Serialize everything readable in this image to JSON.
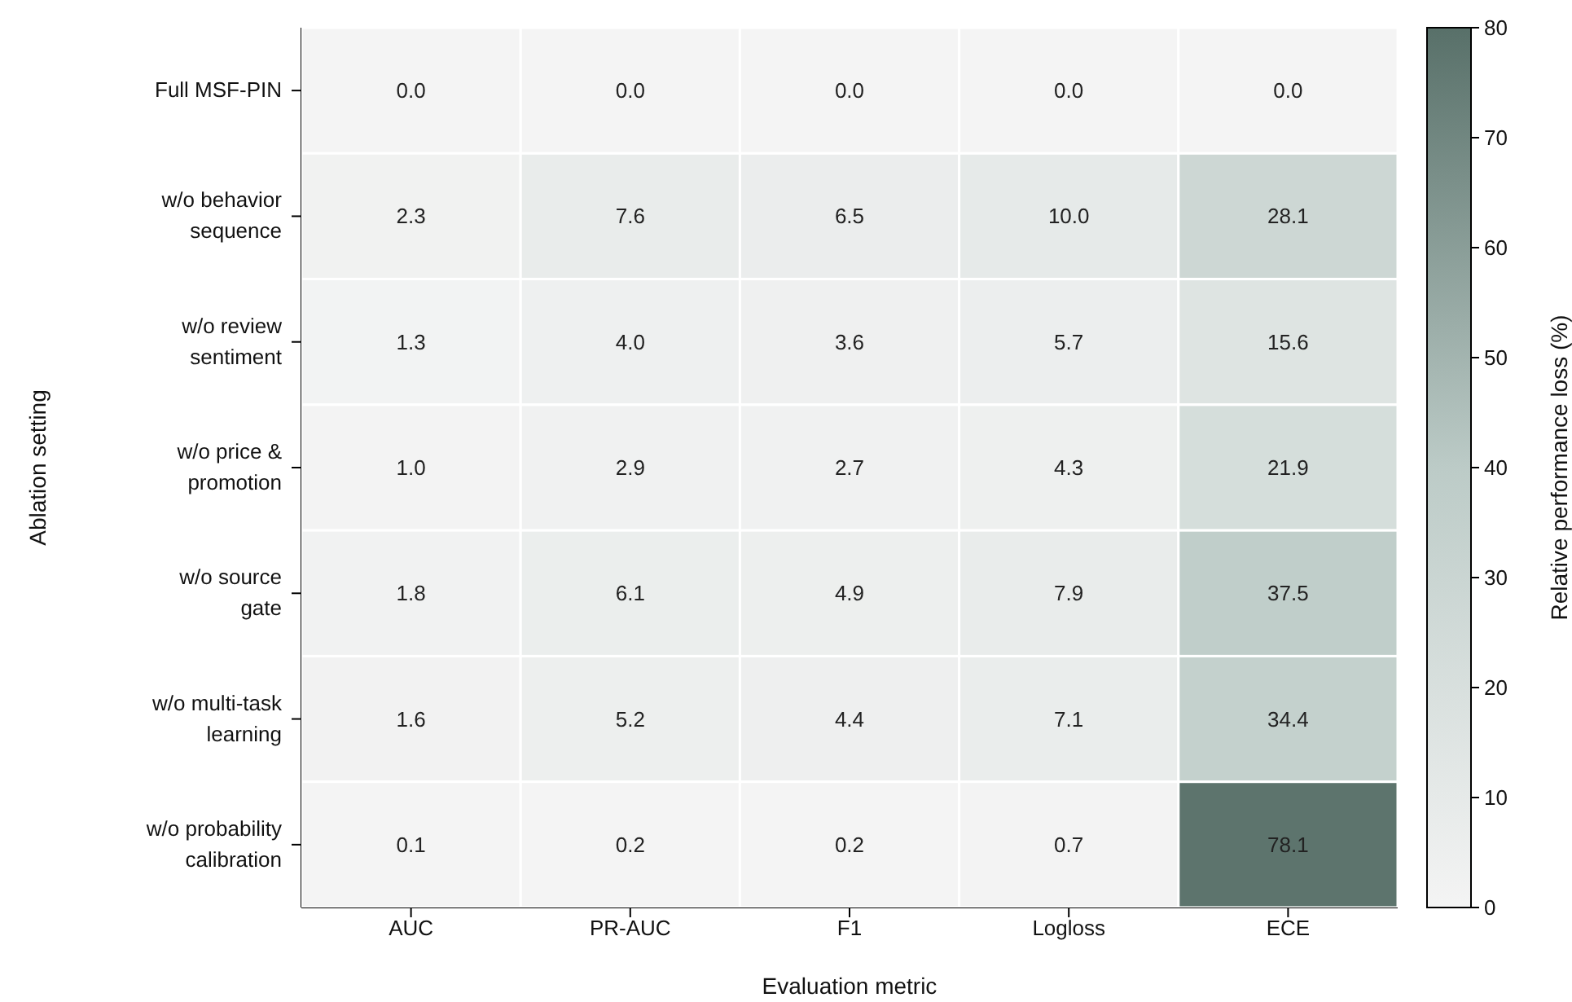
{
  "chart_data": {
    "type": "heatmap",
    "xlabel": "Evaluation metric",
    "ylabel": "Ablation setting",
    "clabel": "Relative performance loss (%)",
    "categories": [
      "AUC",
      "PR-AUC",
      "F1",
      "Logloss",
      "ECE"
    ],
    "y_categories": [
      "Full MSF-PIN",
      "w/o behavior sequence",
      "w/o review sentiment",
      "w/o price & promotion",
      "w/o source gate",
      "w/o multi-task learning",
      "w/o probability calibration"
    ],
    "cells": [
      [
        0.0,
        0.0,
        0.0,
        0.0,
        0.0
      ],
      [
        2.3,
        7.6,
        6.5,
        10.0,
        28.1
      ],
      [
        1.3,
        4.0,
        3.6,
        5.7,
        15.6
      ],
      [
        1.0,
        2.9,
        2.7,
        4.3,
        21.9
      ],
      [
        1.8,
        6.1,
        4.9,
        7.9,
        37.5
      ],
      [
        1.6,
        5.2,
        4.4,
        7.1,
        34.4
      ],
      [
        0.1,
        0.2,
        0.2,
        0.7,
        78.1
      ]
    ],
    "cell_labels": [
      [
        "0.0",
        "0.0",
        "0.0",
        "0.0",
        "0.0"
      ],
      [
        "2.3",
        "7.6",
        "6.5",
        "10.0",
        "28.1"
      ],
      [
        "1.3",
        "4.0",
        "3.6",
        "5.7",
        "15.6"
      ],
      [
        "1.0",
        "2.9",
        "2.7",
        "4.3",
        "21.9"
      ],
      [
        "1.8",
        "6.1",
        "4.9",
        "7.9",
        "37.5"
      ],
      [
        "1.6",
        "5.2",
        "4.4",
        "7.1",
        "34.4"
      ],
      [
        "0.1",
        "0.2",
        "0.2",
        "0.7",
        "78.1"
      ]
    ],
    "clim": [
      0,
      80
    ],
    "cticks": [
      0,
      10,
      20,
      30,
      40,
      50,
      60,
      70,
      80
    ]
  }
}
